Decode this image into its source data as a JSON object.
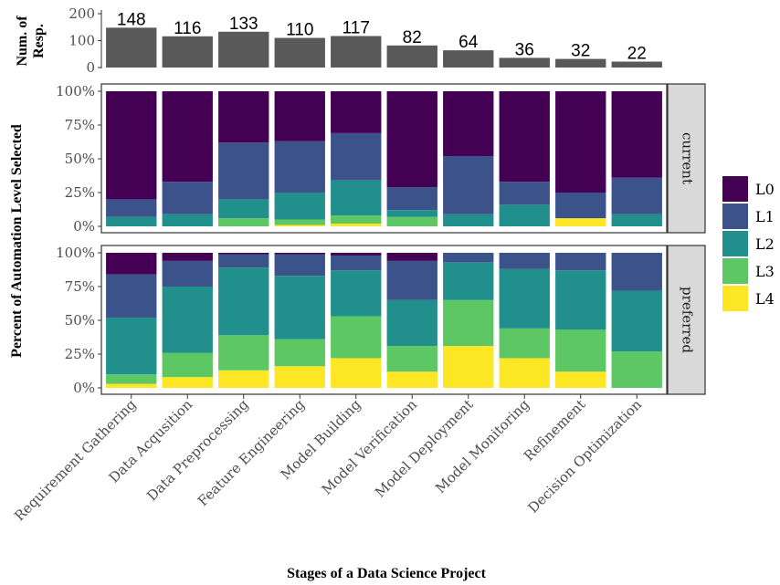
{
  "chart_data": [
    {
      "type": "bar",
      "panel": "count",
      "ylabel": "Num. of Resp.",
      "ylim": [
        0,
        200
      ],
      "yticks": [
        "0",
        "100",
        "200"
      ],
      "categories": [
        "Requirement Gathering",
        "Data Acqusition",
        "Data Preprocessing",
        "Feature Engineering",
        "Model Building",
        "Model Verification",
        "Model Deployment",
        "Model Monitoring",
        "Refinement",
        "Decision Optimization"
      ],
      "values": [
        148,
        116,
        133,
        110,
        117,
        82,
        64,
        36,
        32,
        22
      ],
      "data_labels": [
        "148",
        "116",
        "133",
        "110",
        "117",
        "82",
        "64",
        "36",
        "32",
        "22"
      ],
      "bar_color": "#595959"
    },
    {
      "type": "bar",
      "stacked": true,
      "ylabel": "Percent of Automation Level Selected",
      "xlabel": "Stages of a Data Science Project",
      "ylim": [
        0,
        100
      ],
      "yticks": [
        "0%",
        "25%",
        "50%",
        "75%",
        "100%"
      ],
      "categories": [
        "Requirement Gathering",
        "Data Acqusition",
        "Data Preprocessing",
        "Feature Engineering",
        "Model Building",
        "Model Verification",
        "Model Deployment",
        "Model Monitoring",
        "Refinement",
        "Decision Optimization"
      ],
      "legend": {
        "position": "right",
        "entries": [
          {
            "name": "L0",
            "color": "#440154"
          },
          {
            "name": "L1",
            "color": "#3B528B"
          },
          {
            "name": "L2",
            "color": "#21908C"
          },
          {
            "name": "L3",
            "color": "#5DC863"
          },
          {
            "name": "L4",
            "color": "#FDE725"
          }
        ]
      },
      "facets": [
        {
          "strip": "current",
          "series": [
            {
              "name": "L4",
              "values": [
                0,
                0,
                0,
                1,
                2,
                0,
                0,
                0,
                6,
                0
              ]
            },
            {
              "name": "L3",
              "values": [
                0,
                0,
                6,
                4,
                6,
                7,
                0,
                0,
                0,
                0
              ]
            },
            {
              "name": "L2",
              "values": [
                7,
                9,
                14,
                20,
                26,
                5,
                9,
                16,
                0,
                9
              ]
            },
            {
              "name": "L1",
              "values": [
                13,
                24,
                42,
                38,
                35,
                17,
                43,
                17,
                19,
                27
              ]
            },
            {
              "name": "L0",
              "values": [
                80,
                67,
                38,
                37,
                31,
                71,
                48,
                67,
                75,
                64
              ]
            }
          ]
        },
        {
          "strip": "preferred",
          "series": [
            {
              "name": "L4",
              "values": [
                3,
                8,
                13,
                16,
                22,
                12,
                31,
                22,
                12,
                0
              ]
            },
            {
              "name": "L3",
              "values": [
                7,
                18,
                26,
                20,
                31,
                19,
                34,
                22,
                31,
                27
              ]
            },
            {
              "name": "L2",
              "values": [
                42,
                49,
                50,
                47,
                34,
                34,
                28,
                44,
                44,
                45
              ]
            },
            {
              "name": "L1",
              "values": [
                32,
                19,
                10,
                16,
                11,
                29,
                7,
                12,
                13,
                28
              ]
            },
            {
              "name": "L0",
              "values": [
                16,
                6,
                1,
                1,
                2,
                6,
                0,
                0,
                0,
                0
              ]
            }
          ]
        }
      ]
    }
  ]
}
